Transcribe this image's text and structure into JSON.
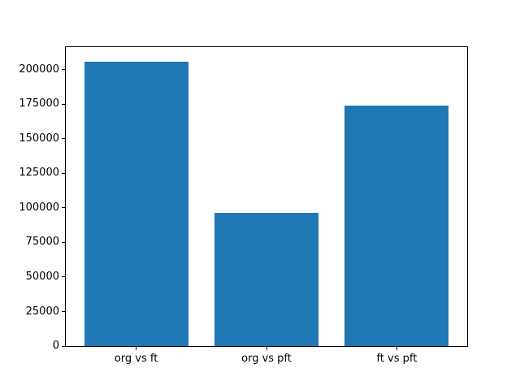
{
  "chart_data": {
    "type": "bar",
    "title": "",
    "xlabel": "",
    "ylabel": "",
    "categories": [
      "org vs ft",
      "org vs pft",
      "ft vs pft"
    ],
    "values": [
      206000,
      96300,
      174000
    ],
    "ylim": [
      0,
      216300
    ],
    "yticks": [
      0,
      25000,
      50000,
      75000,
      100000,
      125000,
      150000,
      175000,
      200000
    ],
    "ytick_labels": [
      "0",
      "25000",
      "50000",
      "75000",
      "100000",
      "125000",
      "150000",
      "175000",
      "200000"
    ],
    "grid": false,
    "legend": null,
    "bar_color": "#1f77b4",
    "background_color": "#ffffff",
    "spine_color": "#000000",
    "text_color": "#000000"
  }
}
